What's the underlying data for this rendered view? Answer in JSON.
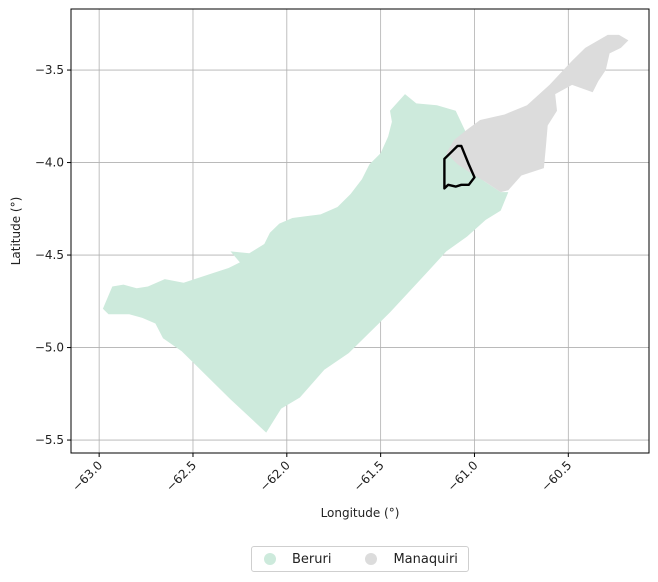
{
  "map": {
    "xlabel": "Longitude (°)",
    "ylabel": "Latitude (°)",
    "xlim": [
      -63.15,
      -60.07
    ],
    "ylim": [
      -5.57,
      -3.17
    ],
    "grid": true,
    "x_ticks": [
      {
        "value": -63.0,
        "label": "−63.0"
      },
      {
        "value": -62.5,
        "label": "−62.5"
      },
      {
        "value": -62.0,
        "label": "−62.0"
      },
      {
        "value": -61.5,
        "label": "−61.5"
      },
      {
        "value": -61.0,
        "label": "−61.0"
      },
      {
        "value": -60.5,
        "label": "−60.5"
      }
    ],
    "y_ticks": [
      {
        "value": -3.5,
        "label": "−3.5"
      },
      {
        "value": -4.0,
        "label": "−4.0"
      },
      {
        "value": -4.5,
        "label": "−4.5"
      },
      {
        "value": -5.0,
        "label": "−5.0"
      },
      {
        "value": -5.5,
        "label": "−5.5"
      }
    ],
    "regions": [
      {
        "name": "Beruri",
        "color": "#cdeadc",
        "coords": [
          [
            -62.98,
            -4.79
          ],
          [
            -62.93,
            -4.67
          ],
          [
            -62.87,
            -4.66
          ],
          [
            -62.8,
            -4.68
          ],
          [
            -62.74,
            -4.67
          ],
          [
            -62.65,
            -4.63
          ],
          [
            -62.55,
            -4.65
          ],
          [
            -62.4,
            -4.6
          ],
          [
            -62.31,
            -4.57
          ],
          [
            -62.25,
            -4.54
          ],
          [
            -62.3,
            -4.48
          ],
          [
            -62.2,
            -4.49
          ],
          [
            -62.12,
            -4.44
          ],
          [
            -62.09,
            -4.38
          ],
          [
            -62.04,
            -4.33
          ],
          [
            -61.97,
            -4.3
          ],
          [
            -61.9,
            -4.29
          ],
          [
            -61.82,
            -4.28
          ],
          [
            -61.73,
            -4.24
          ],
          [
            -61.66,
            -4.17
          ],
          [
            -61.6,
            -4.09
          ],
          [
            -61.56,
            -4.01
          ],
          [
            -61.5,
            -3.95
          ],
          [
            -61.46,
            -3.86
          ],
          [
            -61.44,
            -3.78
          ],
          [
            -61.45,
            -3.72
          ],
          [
            -61.37,
            -3.63
          ],
          [
            -61.31,
            -3.68
          ],
          [
            -61.2,
            -3.69
          ],
          [
            -61.1,
            -3.72
          ],
          [
            -61.03,
            -3.87
          ],
          [
            -61.03,
            -4.0
          ],
          [
            -60.95,
            -4.1
          ],
          [
            -60.86,
            -4.16
          ],
          [
            -60.82,
            -4.16
          ],
          [
            -60.86,
            -4.26
          ],
          [
            -60.94,
            -4.31
          ],
          [
            -61.04,
            -4.4
          ],
          [
            -61.15,
            -4.48
          ],
          [
            -61.24,
            -4.58
          ],
          [
            -61.35,
            -4.7
          ],
          [
            -61.45,
            -4.81
          ],
          [
            -61.55,
            -4.91
          ],
          [
            -61.67,
            -5.03
          ],
          [
            -61.8,
            -5.12
          ],
          [
            -61.93,
            -5.27
          ],
          [
            -62.03,
            -5.33
          ],
          [
            -62.11,
            -5.46
          ],
          [
            -62.3,
            -5.28
          ],
          [
            -62.48,
            -5.1
          ],
          [
            -62.56,
            -5.02
          ],
          [
            -62.66,
            -4.95
          ],
          [
            -62.7,
            -4.87
          ],
          [
            -62.77,
            -4.84
          ],
          [
            -62.84,
            -4.82
          ],
          [
            -62.95,
            -4.82
          ]
        ]
      },
      {
        "name": "Manaquiri",
        "color": "#dcdcdc",
        "coords": [
          [
            -61.15,
            -3.95
          ],
          [
            -61.11,
            -3.88
          ],
          [
            -61.05,
            -3.83
          ],
          [
            -60.97,
            -3.77
          ],
          [
            -60.84,
            -3.74
          ],
          [
            -60.72,
            -3.69
          ],
          [
            -60.6,
            -3.58
          ],
          [
            -60.48,
            -3.45
          ],
          [
            -60.41,
            -3.38
          ],
          [
            -60.29,
            -3.31
          ],
          [
            -60.23,
            -3.31
          ],
          [
            -60.18,
            -3.34
          ],
          [
            -60.22,
            -3.38
          ],
          [
            -60.28,
            -3.41
          ],
          [
            -60.3,
            -3.5
          ],
          [
            -60.34,
            -3.56
          ],
          [
            -60.37,
            -3.62
          ],
          [
            -60.48,
            -3.58
          ],
          [
            -60.57,
            -3.63
          ],
          [
            -60.56,
            -3.72
          ],
          [
            -60.61,
            -3.8
          ],
          [
            -60.62,
            -3.92
          ],
          [
            -60.63,
            -4.03
          ],
          [
            -60.75,
            -4.07
          ],
          [
            -60.82,
            -4.15
          ],
          [
            -60.86,
            -4.16
          ],
          [
            -60.95,
            -4.1
          ],
          [
            -61.03,
            -4.05
          ],
          [
            -61.09,
            -4.01
          ]
        ]
      }
    ],
    "highlight": {
      "color": "#000000",
      "coords": [
        [
          -61.16,
          -3.98
        ],
        [
          -61.13,
          -3.95
        ],
        [
          -61.09,
          -3.91
        ],
        [
          -61.07,
          -3.91
        ],
        [
          -61.03,
          -4.01
        ],
        [
          -61.0,
          -4.08
        ],
        [
          -61.03,
          -4.12
        ],
        [
          -61.07,
          -4.12
        ],
        [
          -61.1,
          -4.13
        ],
        [
          -61.14,
          -4.12
        ],
        [
          -61.16,
          -4.14
        ]
      ]
    }
  },
  "legend": {
    "items": [
      {
        "label": "Beruri",
        "color": "#cdeadc"
      },
      {
        "label": "Manaquiri",
        "color": "#dcdcdc"
      }
    ]
  }
}
